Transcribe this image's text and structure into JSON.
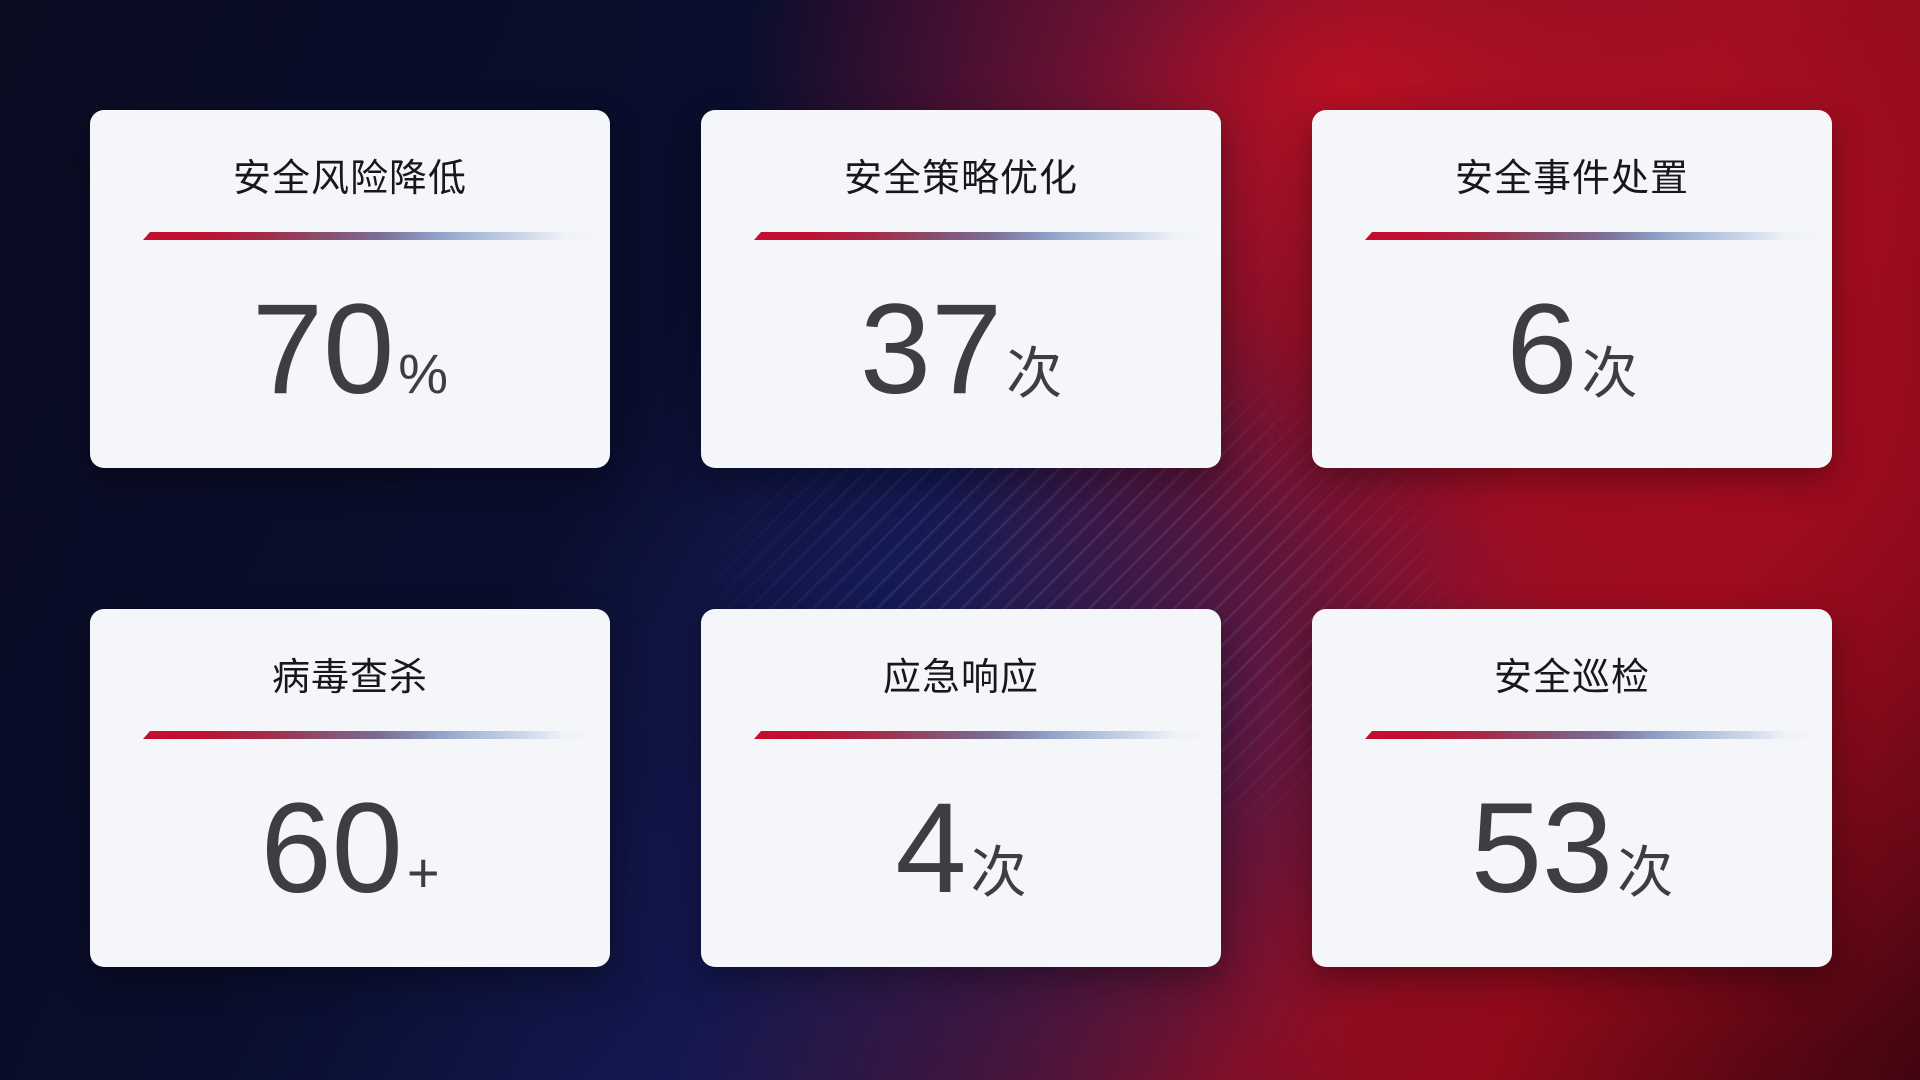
{
  "dashboard": {
    "description": "security operations KPI dashboard"
  },
  "cards": [
    {
      "label": "安全风险降低",
      "value": "70",
      "unit": "%"
    },
    {
      "label": "安全策略优化",
      "value": "37",
      "unit": "次"
    },
    {
      "label": "安全事件处置",
      "value": "6",
      "unit": "次"
    },
    {
      "label": "病毒查杀",
      "value": "60",
      "unit": "+"
    },
    {
      "label": "应急响应",
      "value": "4",
      "unit": "次"
    },
    {
      "label": "安全巡检",
      "value": "53",
      "unit": "次"
    }
  ],
  "colors": {
    "card_background": "#f5f6fa",
    "title_text": "#17181c",
    "value_text": "#3d3e42",
    "divider_red": "#c40e2f",
    "divider_blue": "#aebfdc",
    "background_navy": "#0a0c22",
    "background_red": "#a50e1e",
    "background_maroon": "#420510"
  }
}
